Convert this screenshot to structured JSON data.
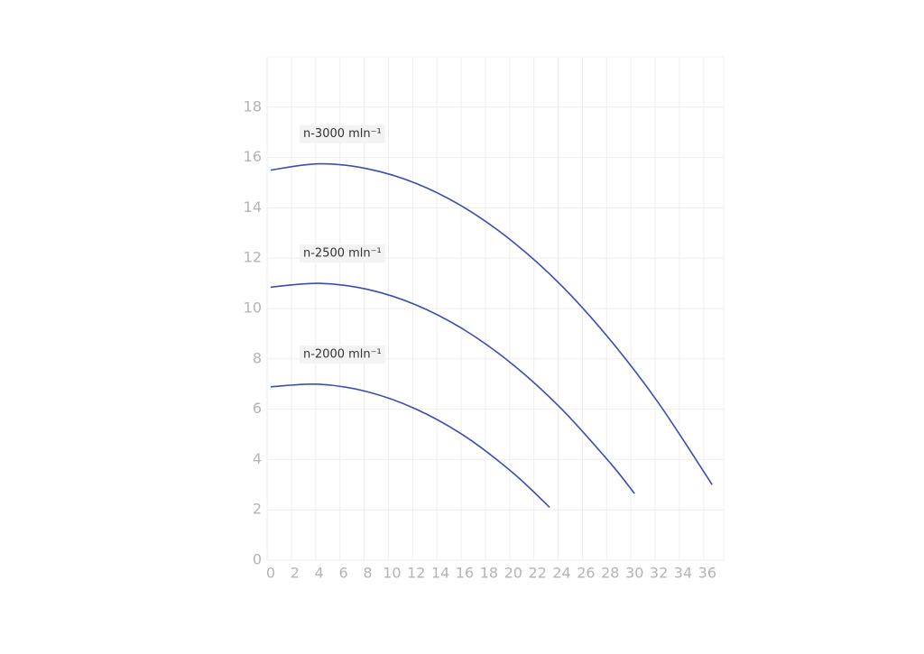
{
  "chart_data": {
    "type": "line",
    "xlim": [
      0,
      37.5
    ],
    "xticks": [
      0,
      2,
      4,
      6,
      8,
      10,
      12,
      14,
      16,
      18,
      20,
      22,
      24,
      26,
      28,
      30,
      32,
      34,
      36
    ],
    "ylim": [
      0,
      20
    ],
    "yticks": [
      0,
      2,
      4,
      6,
      8,
      10,
      12,
      14,
      16,
      18
    ],
    "grid": true,
    "series": [
      {
        "name": "n-3000 mln⁻¹",
        "color": "#3b4cb3",
        "x": [
          0,
          4,
          8,
          12,
          16,
          20,
          24,
          28,
          32,
          36.4
        ],
        "values": [
          15.5,
          15.75,
          15.55,
          14.97,
          14.0,
          12.64,
          10.9,
          8.75,
          6.23,
          3.0
        ]
      },
      {
        "name": "n-2500 mln⁻¹",
        "color": "#3b4cb3",
        "x": [
          0,
          4,
          8,
          12,
          16,
          20,
          24,
          28,
          30
        ],
        "values": [
          10.85,
          11.0,
          10.76,
          10.14,
          9.14,
          7.76,
          6.0,
          3.86,
          2.65
        ]
      },
      {
        "name": "n-2000 mln⁻¹",
        "color": "#3b4cb3",
        "x": [
          0,
          4,
          8,
          12,
          16,
          20,
          23
        ],
        "values": [
          6.89,
          6.99,
          6.69,
          6.0,
          4.93,
          3.46,
          2.1
        ]
      }
    ]
  }
}
